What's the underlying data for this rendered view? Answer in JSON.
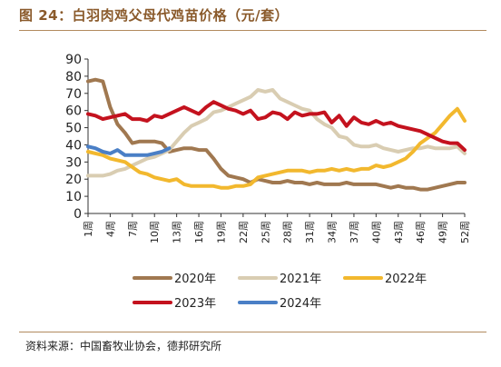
{
  "header": {
    "title": "图 24：白羽肉鸡父母代鸡苗价格（元/套）"
  },
  "footer": {
    "source": "资料来源：中国畜牧业协会，德邦研究所"
  },
  "colors": {
    "title": "#8a5a2b",
    "rule": "#b28a5e",
    "series_2020": "#a07850",
    "series_2021": "#d9cdb2",
    "series_2022": "#f2b82e",
    "series_2023": "#c4121e",
    "series_2024": "#4a7fc6"
  },
  "chart_data": {
    "type": "line",
    "title": "白羽肉鸡父母代鸡苗价格（元/套）",
    "xlabel": "",
    "ylabel": "",
    "ylim": [
      0,
      90
    ],
    "yticks": [
      0,
      10,
      20,
      30,
      40,
      50,
      60,
      70,
      80,
      90
    ],
    "x_tick_labels": [
      "1周",
      "4周",
      "7周",
      "10周",
      "13周",
      "16周",
      "19周",
      "22周",
      "25周",
      "28周",
      "31周",
      "34周",
      "37周",
      "40周",
      "43周",
      "46周",
      "49周",
      "52周"
    ],
    "x_tick_weeks": [
      1,
      4,
      7,
      10,
      13,
      16,
      19,
      22,
      25,
      28,
      31,
      34,
      37,
      40,
      43,
      46,
      49,
      52
    ],
    "xlim": [
      1,
      52
    ],
    "grid": false,
    "legend": "bottom",
    "series": [
      {
        "name": "2020年",
        "color": "#a07850",
        "x": [
          1,
          2,
          3,
          4,
          5,
          6,
          7,
          8,
          9,
          10,
          11,
          12,
          13,
          14,
          15,
          16,
          17,
          18,
          19,
          20,
          21,
          22,
          23,
          24,
          25,
          26,
          27,
          28,
          29,
          30,
          31,
          32,
          33,
          34,
          35,
          36,
          37,
          38,
          39,
          40,
          41,
          42,
          43,
          44,
          45,
          46,
          47,
          48,
          49,
          50,
          51,
          52
        ],
        "values": [
          77,
          78,
          77,
          62,
          52,
          47,
          41,
          42,
          42,
          42,
          41,
          36,
          37,
          38,
          38,
          37,
          37,
          32,
          26,
          22,
          21,
          20,
          18,
          20,
          19,
          18,
          18,
          19,
          18,
          18,
          17,
          18,
          17,
          17,
          17,
          18,
          17,
          17,
          17,
          17,
          16,
          15,
          16,
          15,
          15,
          14,
          14,
          15,
          16,
          17,
          18,
          18
        ]
      },
      {
        "name": "2021年",
        "color": "#d9cdb2",
        "x": [
          1,
          2,
          3,
          4,
          5,
          6,
          7,
          8,
          9,
          10,
          11,
          12,
          13,
          14,
          15,
          16,
          17,
          18,
          19,
          20,
          21,
          22,
          23,
          24,
          25,
          26,
          27,
          28,
          29,
          30,
          31,
          32,
          33,
          34,
          35,
          36,
          37,
          38,
          39,
          40,
          41,
          42,
          43,
          44,
          45,
          46,
          47,
          48,
          49,
          50,
          51,
          52
        ],
        "values": [
          22,
          22,
          22,
          23,
          25,
          26,
          28,
          30,
          32,
          33,
          35,
          37,
          42,
          47,
          51,
          53,
          55,
          59,
          60,
          62,
          64,
          66,
          68,
          72,
          71,
          72,
          67,
          65,
          63,
          61,
          60,
          55,
          52,
          50,
          45,
          44,
          40,
          39,
          39,
          40,
          38,
          37,
          36,
          37,
          38,
          38,
          39,
          38,
          38,
          38,
          39,
          35
        ]
      },
      {
        "name": "2022年",
        "color": "#f2b82e",
        "x": [
          1,
          2,
          3,
          4,
          5,
          6,
          7,
          8,
          9,
          10,
          11,
          12,
          13,
          14,
          15,
          16,
          17,
          18,
          19,
          20,
          21,
          22,
          23,
          24,
          25,
          26,
          27,
          28,
          29,
          30,
          31,
          32,
          33,
          34,
          35,
          36,
          37,
          38,
          39,
          40,
          41,
          42,
          43,
          44,
          45,
          46,
          47,
          48,
          49,
          50,
          51,
          52
        ],
        "values": [
          36,
          35,
          34,
          32,
          31,
          30,
          27,
          24,
          23,
          21,
          20,
          19,
          20,
          17,
          16,
          16,
          16,
          16,
          15,
          15,
          16,
          16,
          17,
          21,
          22,
          23,
          24,
          25,
          25,
          25,
          24,
          25,
          25,
          26,
          25,
          26,
          25,
          26,
          26,
          28,
          27,
          28,
          30,
          32,
          36,
          41,
          44,
          47,
          52,
          57,
          61,
          54
        ]
      },
      {
        "name": "2023年",
        "color": "#c4121e",
        "x": [
          1,
          2,
          3,
          4,
          5,
          6,
          7,
          8,
          9,
          10,
          11,
          12,
          13,
          14,
          15,
          16,
          17,
          18,
          19,
          20,
          21,
          22,
          23,
          24,
          25,
          26,
          27,
          28,
          29,
          30,
          31,
          32,
          33,
          34,
          35,
          36,
          37,
          38,
          39,
          40,
          41,
          42,
          43,
          44,
          45,
          46,
          47,
          48,
          49,
          50,
          51,
          52
        ],
        "values": [
          58,
          57,
          55,
          56,
          57,
          58,
          55,
          55,
          54,
          57,
          56,
          58,
          60,
          62,
          60,
          58,
          62,
          65,
          63,
          61,
          60,
          58,
          60,
          55,
          56,
          59,
          58,
          55,
          59,
          57,
          58,
          58,
          59,
          53,
          57,
          51,
          56,
          53,
          52,
          54,
          52,
          53,
          51,
          50,
          49,
          48,
          46,
          44,
          42,
          41,
          41,
          37
        ]
      },
      {
        "name": "2024年",
        "color": "#4a7fc6",
        "x": [
          1,
          2,
          3,
          4,
          5,
          6,
          7,
          8,
          9,
          10,
          11,
          12
        ],
        "values": [
          39,
          38,
          36,
          35,
          37,
          34,
          34,
          34,
          34,
          35,
          36,
          38
        ]
      }
    ]
  }
}
